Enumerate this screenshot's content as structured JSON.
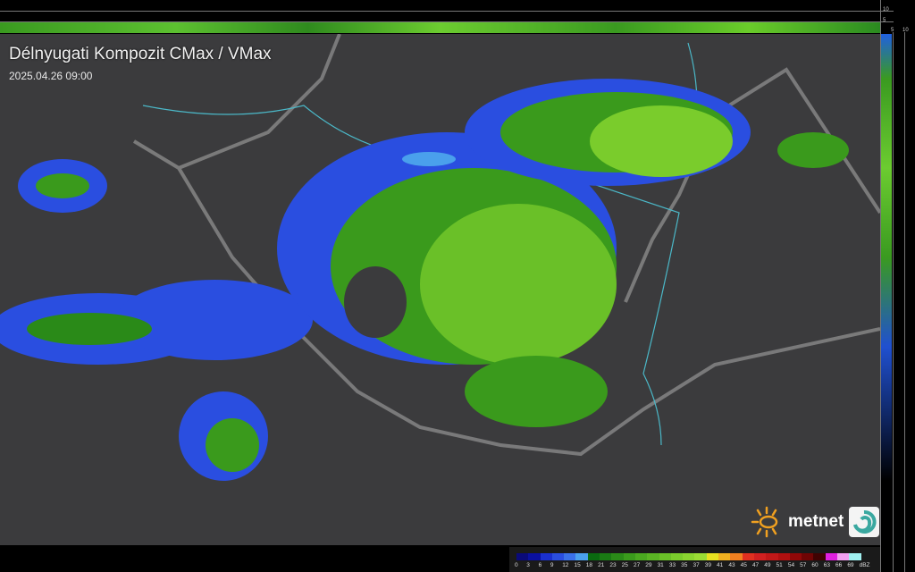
{
  "map": {
    "title": "Délnyugati Kompozit CMax / VMax",
    "timestamp": "2025.04.26 09:00",
    "background_color": "#3b3b3d"
  },
  "profile_axes": {
    "top_labels": [
      "10",
      "5"
    ],
    "right_labels": [
      "5",
      "10"
    ]
  },
  "legend": {
    "unit": "dBZ",
    "ticks": [
      "0",
      "3",
      "6",
      "9",
      "12",
      "15",
      "18",
      "21",
      "23",
      "25",
      "27",
      "29",
      "31",
      "33",
      "35",
      "37",
      "39",
      "41",
      "43",
      "45",
      "47",
      "49",
      "51",
      "54",
      "57",
      "60",
      "63",
      "66",
      "69"
    ],
    "colors": [
      "#0a0a7a",
      "#0a10a0",
      "#1a30d0",
      "#2a4ee0",
      "#3a70e8",
      "#4aa0ec",
      "#0a6a10",
      "#1a7a14",
      "#2a8a18",
      "#3a9a1c",
      "#4aa820",
      "#5ab424",
      "#6ac028",
      "#7acc2c",
      "#8ad430",
      "#9adc34",
      "#e8e020",
      "#f0b020",
      "#f08020",
      "#e03020",
      "#d02020",
      "#c01818",
      "#b01010",
      "#900808",
      "#700404",
      "#400202",
      "#e020e0",
      "#f0a0f0",
      "#a0f0f0"
    ]
  },
  "logo": {
    "text": "metnet",
    "brand": "ometnet"
  }
}
